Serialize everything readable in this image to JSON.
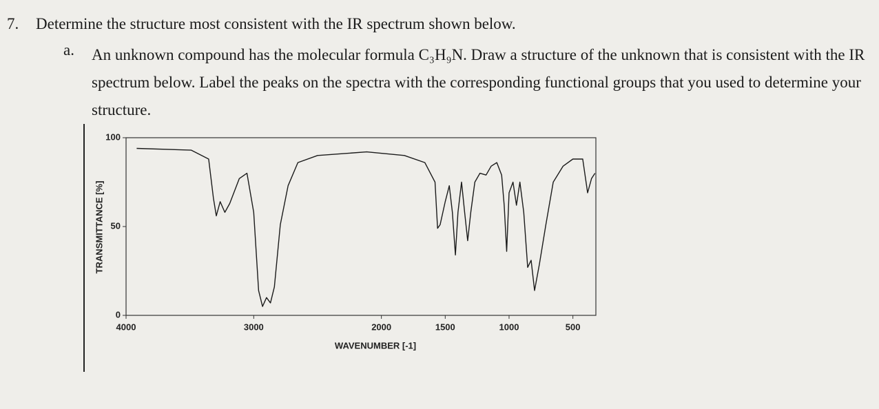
{
  "question": {
    "number": "7.",
    "text": "Determine the structure most consistent with the IR spectrum shown below.",
    "part": {
      "label": "a.",
      "text": "An unknown compound has the molecular formula C₃H₉N. Draw a structure of the unknown that is consistent with the IR spectrum below. Label the peaks on the spectra with the corresponding functional groups that you used to determine your structure."
    }
  },
  "chart_data": {
    "type": "line",
    "x_label": "WAVENUMBER [-1]",
    "y_label": "TRANSMITTANCE [%]",
    "color": "#1a1a1a",
    "x": [
      3917,
      3489,
      3353,
      3316,
      3293,
      3263,
      3226,
      3188,
      3113,
      3053,
      3000,
      2962,
      2931,
      2900,
      2869,
      2838,
      2792,
      2731,
      2654,
      2500,
      2115,
      1820,
      1660,
      1580,
      1560,
      1540,
      1500,
      1468,
      1444,
      1420,
      1400,
      1372,
      1348,
      1324,
      1300,
      1268,
      1228,
      1180,
      1140,
      1096,
      1058,
      1038,
      1019,
      1000,
      969,
      942,
      915,
      885,
      854,
      827,
      800,
      762,
      712,
      654,
      577,
      500,
      423,
      385,
      354,
      327
    ],
    "values": [
      94,
      93,
      88,
      66,
      56,
      64,
      58,
      63,
      77,
      80,
      58,
      14,
      5,
      10,
      7,
      16,
      51,
      73,
      86,
      90,
      92,
      90,
      86,
      75,
      49,
      51,
      64,
      73,
      58,
      34,
      58,
      75,
      58,
      42,
      58,
      75,
      80,
      79,
      84,
      86,
      79,
      62,
      36,
      69,
      75,
      62,
      75,
      58,
      27,
      31,
      14,
      29,
      51,
      75,
      84,
      88,
      88,
      69,
      77,
      80
    ],
    "xlim": [
      4000,
      320
    ],
    "ylim": [
      0,
      100
    ],
    "xticks": [
      4000,
      3000,
      2000,
      1500,
      1000,
      500
    ],
    "yticks": [
      0,
      50,
      100
    ],
    "grid": false
  }
}
